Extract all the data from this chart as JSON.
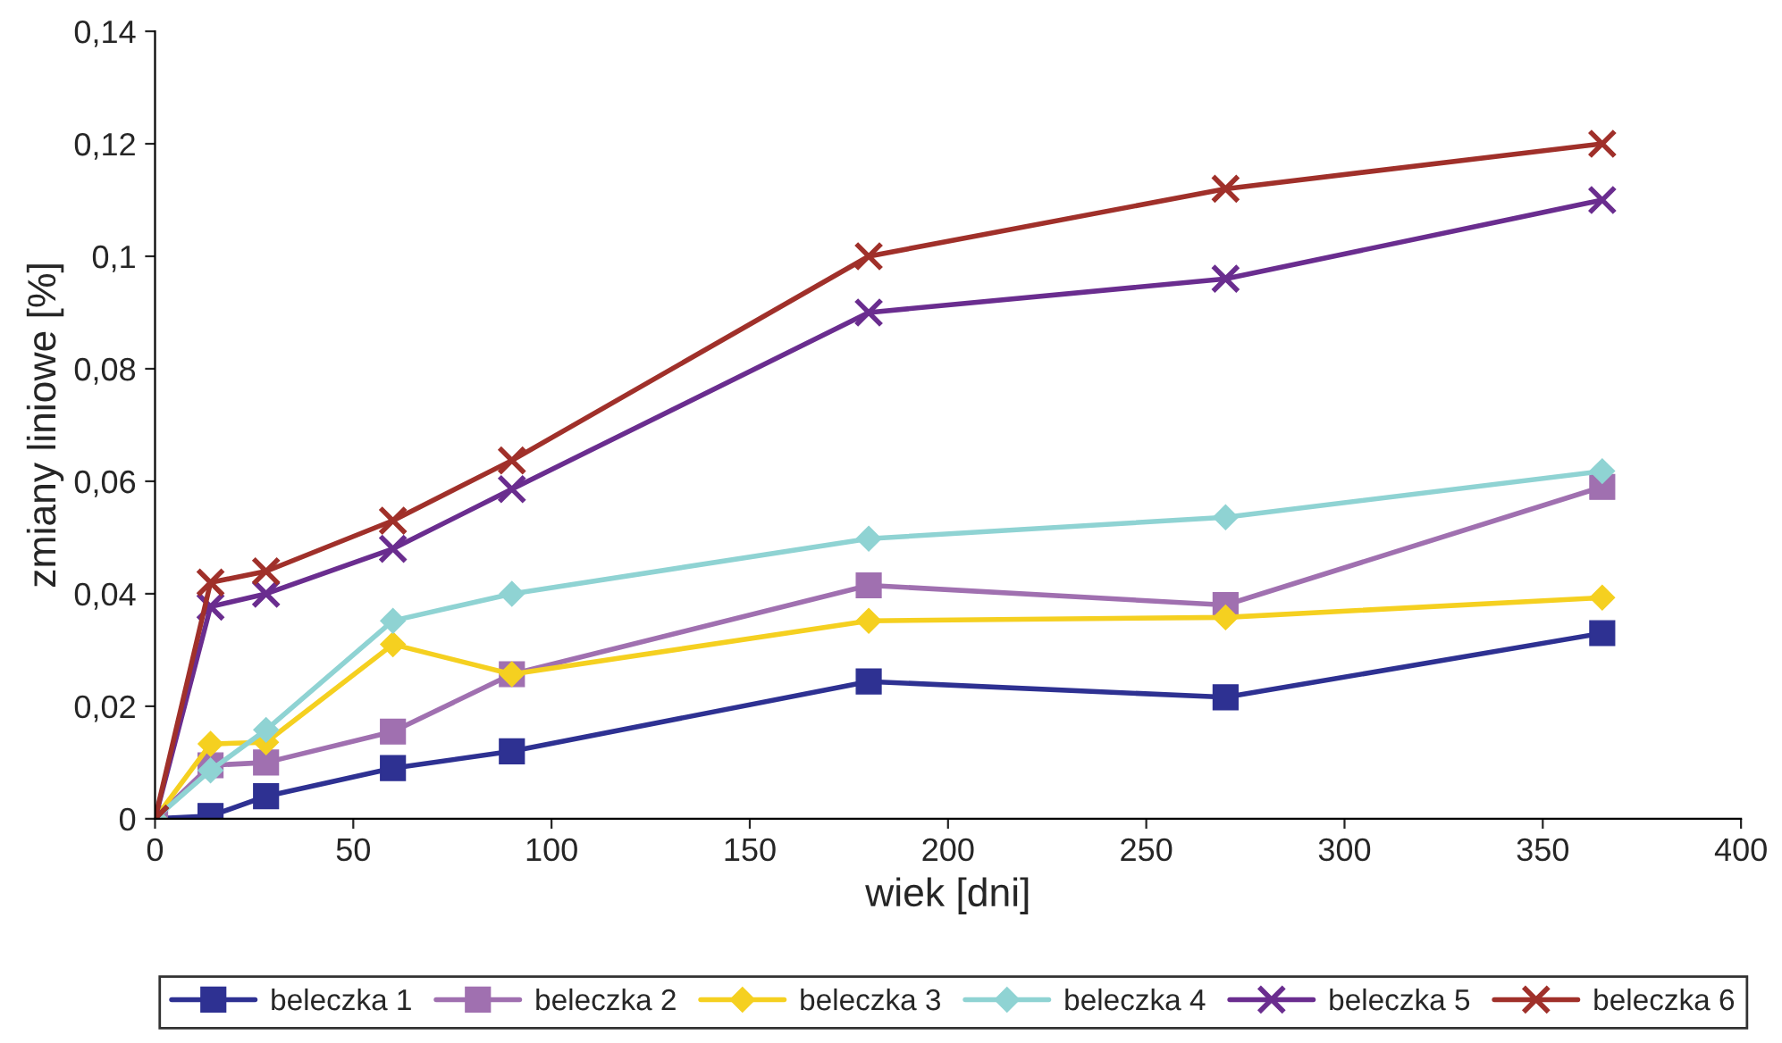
{
  "chart_data": {
    "type": "line",
    "xlabel": "wiek [dni]",
    "ylabel": "zmiany liniowe [%]",
    "x": [
      0,
      14,
      28,
      60,
      90,
      180,
      270,
      365
    ],
    "xlim": [
      0,
      400
    ],
    "xticks": [
      0,
      50,
      100,
      150,
      200,
      250,
      300,
      350,
      400
    ],
    "ylim": [
      0,
      0.14
    ],
    "yticks": [
      0,
      {
        "value": 0.02,
        "label": "0,02"
      },
      {
        "value": 0.04,
        "label": "0,04"
      },
      {
        "value": 0.06,
        "label": "0,06"
      },
      {
        "value": 0.08,
        "label": "0,08"
      },
      {
        "value": 0.1,
        "label": "0,1"
      },
      {
        "value": 0.12,
        "label": "0,12"
      },
      {
        "value": 0.14,
        "label": "0,14"
      }
    ],
    "grid": false,
    "legend": "bottom",
    "line_style": "solid",
    "series": [
      {
        "name": "beleczka 1",
        "color": "#2e3192",
        "marker": "square",
        "values": [
          0,
          0.0005,
          0.004,
          0.009,
          0.012,
          0.0244,
          0.0216,
          0.033
        ]
      },
      {
        "name": "beleczka 2",
        "color": "#a070b0",
        "marker": "square",
        "values": [
          0,
          0.0095,
          0.01,
          0.0155,
          0.0257,
          0.0415,
          0.038,
          0.059
        ]
      },
      {
        "name": "beleczka 3",
        "color": "#f5d020",
        "marker": "diamond",
        "values": [
          0,
          0.0133,
          0.0136,
          0.031,
          0.0257,
          0.0352,
          0.0358,
          0.0393
        ]
      },
      {
        "name": "beleczka 4",
        "color": "#8fd3d3",
        "marker": "diamond",
        "values": [
          0,
          0.0086,
          0.0158,
          0.0352,
          0.04,
          0.0498,
          0.0536,
          0.0618
        ]
      },
      {
        "name": "beleczka 5",
        "color": "#6a2d8f",
        "marker": "cross",
        "values": [
          0,
          0.0377,
          0.04,
          0.048,
          0.0586,
          0.09,
          0.096,
          0.11
        ]
      },
      {
        "name": "beleczka 6",
        "color": "#a0302a",
        "marker": "cross",
        "values": [
          0,
          0.042,
          0.044,
          0.053,
          0.0637,
          0.1,
          0.112,
          0.12
        ]
      }
    ]
  }
}
